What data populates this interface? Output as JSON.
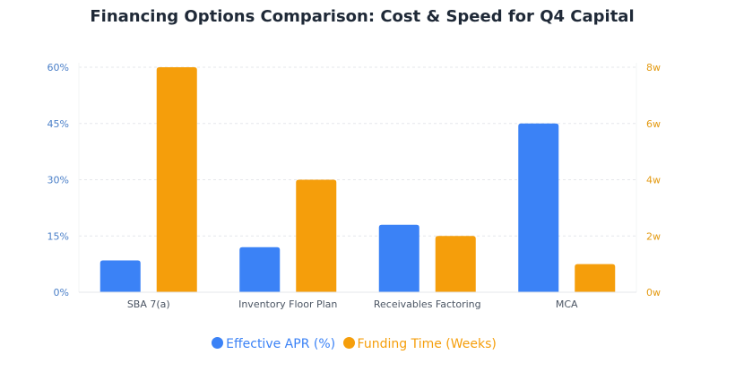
{
  "chart_data": {
    "type": "bar",
    "title": "Financing Options Comparison: Cost & Speed for Q4 Capital",
    "categories": [
      "SBA 7(a)",
      "Inventory Floor Plan",
      "Receivables Factoring",
      "MCA"
    ],
    "series": [
      {
        "name": "Effective APR (%)",
        "axis": "left",
        "color": "#3b82f6",
        "values": [
          8.5,
          12,
          18,
          45
        ]
      },
      {
        "name": "Funding Time (Weeks)",
        "axis": "right",
        "color": "#f59e0b",
        "values": [
          8,
          4,
          2,
          1
        ]
      }
    ],
    "y_left": {
      "ylim": [
        0,
        60
      ],
      "ticks": [
        0,
        15,
        30,
        45,
        60
      ],
      "tick_labels": [
        "0%",
        "15%",
        "30%",
        "45%",
        "60%"
      ],
      "color": "#4a7fc8"
    },
    "y_right": {
      "ylim": [
        0,
        8
      ],
      "ticks": [
        0,
        2,
        4,
        6,
        8
      ],
      "tick_labels": [
        "0w",
        "2w",
        "4w",
        "6w",
        "8w"
      ],
      "color": "#e39a12"
    },
    "grid": "horizontal-dashed",
    "legend_position": "bottom"
  }
}
